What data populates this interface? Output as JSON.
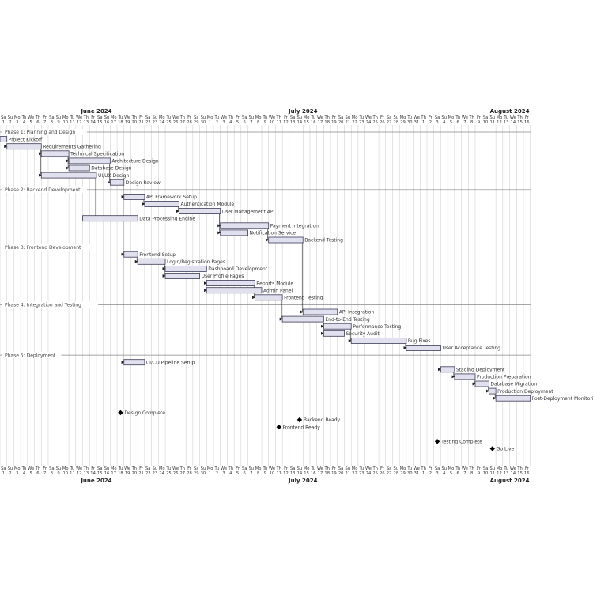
{
  "chart_data": {
    "type": "gantt",
    "range": [
      "2024-06-01",
      "2024-08-16"
    ],
    "months": [
      {
        "name": "June 2024",
        "date": "2024-06-15"
      },
      {
        "name": "July 2024",
        "date": "2024-07-15"
      },
      {
        "name": "August 2024",
        "date": "2024-08-14"
      }
    ],
    "day_abbrev": [
      "Su",
      "Mo",
      "Tu",
      "We",
      "Th",
      "Fr",
      "Sa"
    ],
    "rows": [
      {
        "kind": "separator",
        "label": "Phase 1: Planning and Design"
      },
      {
        "kind": "task",
        "id": "kickoff",
        "label": "Project Kickoff",
        "start": "2024-06-01",
        "end": "2024-06-01"
      },
      {
        "kind": "task",
        "id": "req",
        "label": "Requirements Gathering",
        "start": "2024-06-02",
        "end": "2024-06-06",
        "after": [
          "kickoff"
        ]
      },
      {
        "kind": "task",
        "id": "tech",
        "label": "Technical Specification",
        "start": "2024-06-07",
        "end": "2024-06-10",
        "after": [
          "req"
        ]
      },
      {
        "kind": "task",
        "id": "arch",
        "label": "Architecture Design",
        "start": "2024-06-11",
        "end": "2024-06-16",
        "after": [
          "tech"
        ]
      },
      {
        "kind": "task",
        "id": "db",
        "label": "Database Design",
        "start": "2024-06-11",
        "end": "2024-06-13",
        "after": [
          "tech"
        ]
      },
      {
        "kind": "task",
        "id": "uiux",
        "label": "UI/UX Design",
        "start": "2024-06-07",
        "end": "2024-06-14",
        "after": [
          "req"
        ]
      },
      {
        "kind": "task",
        "id": "review",
        "label": "Design Review",
        "start": "2024-06-17",
        "end": "2024-06-18",
        "after": [
          "arch"
        ]
      },
      {
        "kind": "separator",
        "label": "Phase 2: Backend Development"
      },
      {
        "kind": "task",
        "id": "apifw",
        "label": "API Framework Setup",
        "start": "2024-06-19",
        "end": "2024-06-21",
        "after": [
          "review"
        ]
      },
      {
        "kind": "task",
        "id": "auth",
        "label": "Authentication Module",
        "start": "2024-06-22",
        "end": "2024-06-26",
        "after": [
          "apifw"
        ]
      },
      {
        "kind": "task",
        "id": "userapi",
        "label": "User Management API",
        "start": "2024-06-27",
        "end": "2024-07-02",
        "after": [
          "auth"
        ]
      },
      {
        "kind": "task",
        "id": "dpe",
        "label": "Data Processing Engine",
        "start": "2024-06-13",
        "end": "2024-06-20",
        "after": [
          "uiux"
        ]
      },
      {
        "kind": "task",
        "id": "pay",
        "label": "Payment Integration",
        "start": "2024-07-03",
        "end": "2024-07-09",
        "after": [
          "userapi"
        ]
      },
      {
        "kind": "task",
        "id": "notif",
        "label": "Notification Service",
        "start": "2024-07-03",
        "end": "2024-07-06",
        "after": [
          "userapi"
        ]
      },
      {
        "kind": "task",
        "id": "betest",
        "label": "Backend Testing",
        "start": "2024-07-10",
        "end": "2024-07-14",
        "after": [
          "pay"
        ]
      },
      {
        "kind": "separator",
        "label": "Phase 3: Frontend Development"
      },
      {
        "kind": "task",
        "id": "fesetup",
        "label": "Frontend Setup",
        "start": "2024-06-19",
        "end": "2024-06-20",
        "after": [
          "review"
        ]
      },
      {
        "kind": "task",
        "id": "login",
        "label": "Login/Registration Pages",
        "start": "2024-06-21",
        "end": "2024-06-24",
        "after": [
          "fesetup"
        ]
      },
      {
        "kind": "task",
        "id": "dash",
        "label": "Dashboard Development",
        "start": "2024-06-25",
        "end": "2024-06-30",
        "after": [
          "login"
        ]
      },
      {
        "kind": "task",
        "id": "profile",
        "label": "User Profile Pages",
        "start": "2024-06-25",
        "end": "2024-06-29",
        "after": [
          "login"
        ]
      },
      {
        "kind": "task",
        "id": "reports",
        "label": "Reports Module",
        "start": "2024-07-01",
        "end": "2024-07-07",
        "after": [
          "dash"
        ]
      },
      {
        "kind": "task",
        "id": "admin",
        "label": "Admin Panel",
        "start": "2024-07-01",
        "end": "2024-07-08",
        "after": [
          "dash"
        ]
      },
      {
        "kind": "task",
        "id": "fetest",
        "label": "Frontend Testing",
        "start": "2024-07-08",
        "end": "2024-07-11",
        "after": [
          "reports"
        ]
      },
      {
        "kind": "separator",
        "label": "Phase 4: Integration and Testing"
      },
      {
        "kind": "task",
        "id": "apiint",
        "label": "API Integration",
        "start": "2024-07-15",
        "end": "2024-07-19",
        "after": [
          "betest"
        ]
      },
      {
        "kind": "task",
        "id": "e2e",
        "label": "End-to-End Testing",
        "start": "2024-07-12",
        "end": "2024-07-17",
        "after": [
          "fetest"
        ]
      },
      {
        "kind": "task",
        "id": "perf",
        "label": "Performance Testing",
        "start": "2024-07-18",
        "end": "2024-07-21",
        "after": [
          "e2e"
        ]
      },
      {
        "kind": "task",
        "id": "sec",
        "label": "Security Audit",
        "start": "2024-07-18",
        "end": "2024-07-20",
        "after": [
          "e2e"
        ]
      },
      {
        "kind": "task",
        "id": "bugs",
        "label": "Bug Fixes",
        "start": "2024-07-22",
        "end": "2024-07-29",
        "after": [
          "perf"
        ]
      },
      {
        "kind": "task",
        "id": "uat",
        "label": "User Acceptance Testing",
        "start": "2024-07-30",
        "end": "2024-08-03",
        "after": [
          "bugs"
        ]
      },
      {
        "kind": "separator",
        "label": "Phase 5: Deployment"
      },
      {
        "kind": "task",
        "id": "cicd",
        "label": "CI/CD Pipeline Setup",
        "start": "2024-06-19",
        "end": "2024-06-21",
        "after": [
          "review"
        ]
      },
      {
        "kind": "task",
        "id": "staging",
        "label": "Staging Deployment",
        "start": "2024-08-04",
        "end": "2024-08-05",
        "after": [
          "uat"
        ]
      },
      {
        "kind": "task",
        "id": "prep",
        "label": "Production Preparation",
        "start": "2024-08-06",
        "end": "2024-08-08",
        "after": [
          "staging"
        ]
      },
      {
        "kind": "task",
        "id": "migr",
        "label": "Database Migration",
        "start": "2024-08-09",
        "end": "2024-08-10",
        "after": [
          "prep"
        ]
      },
      {
        "kind": "task",
        "id": "proddep",
        "label": "Production Deployment",
        "start": "2024-08-11",
        "end": "2024-08-11",
        "after": [
          "migr"
        ]
      },
      {
        "kind": "task",
        "id": "monitor",
        "label": "Post-Deployment Monitoring",
        "start": "2024-08-12",
        "end": "2024-08-16",
        "after": [
          "proddep"
        ]
      },
      {
        "kind": "blank"
      },
      {
        "kind": "milestone",
        "label": "Design Complete",
        "date": "2024-06-18"
      },
      {
        "kind": "milestone",
        "label": "Backend Ready",
        "date": "2024-07-14"
      },
      {
        "kind": "milestone",
        "label": "Frontend Ready",
        "date": "2024-07-11"
      },
      {
        "kind": "blank"
      },
      {
        "kind": "milestone",
        "label": "Testing Complete",
        "date": "2024-08-03"
      },
      {
        "kind": "milestone",
        "label": "Go Live",
        "date": "2024-08-11"
      }
    ],
    "colors": {
      "bar_fill": "#e0e0ee",
      "bar_stroke": "#3a3a55",
      "grid": "#c8c8c8",
      "separator": "#888888",
      "arrow": "#222222",
      "milestone": "#000000",
      "text": "#333333"
    }
  }
}
